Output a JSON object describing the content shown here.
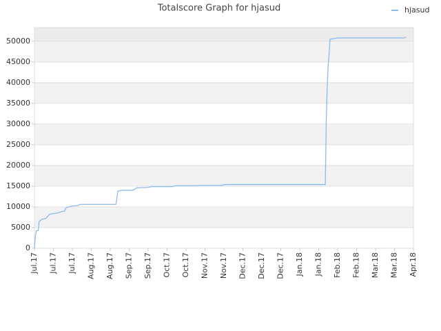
{
  "chart_data": {
    "type": "line",
    "title": "Totalscore Graph for hjasud",
    "x": [
      0,
      0.05,
      0.1,
      0.2,
      0.25,
      0.4,
      0.6,
      0.8,
      1.0,
      1.2,
      1.4,
      1.6,
      1.65,
      1.8,
      2.0,
      2.3,
      2.4,
      3.0,
      4.3,
      4.35,
      4.4,
      4.6,
      5.2,
      5.4,
      6.0,
      6.2,
      7.3,
      7.4,
      8.6,
      8.7,
      9.9,
      10.0,
      15.35,
      15.4,
      15.45,
      15.5,
      15.55,
      15.6,
      16.0,
      19.5,
      19.6
    ],
    "series": [
      {
        "name": "hjasud",
        "color": "#88bbee",
        "values": [
          0,
          3000,
          4200,
          4300,
          6500,
          7000,
          7200,
          8200,
          8400,
          8500,
          8800,
          9000,
          9700,
          10000,
          10200,
          10300,
          10600,
          10600,
          10600,
          12000,
          13800,
          14000,
          14000,
          14600,
          14700,
          14900,
          14900,
          15100,
          15100,
          15200,
          15200,
          15400,
          15400,
          31000,
          39000,
          44000,
          47000,
          50500,
          50800,
          50800,
          51000
        ]
      }
    ],
    "xlim": [
      0,
      20
    ],
    "xticks": [
      {
        "value": 0,
        "label": "Jul.17"
      },
      {
        "value": 1,
        "label": "Jul.17"
      },
      {
        "value": 2,
        "label": "Jul.17"
      },
      {
        "value": 3,
        "label": "Aug.17"
      },
      {
        "value": 4,
        "label": "Aug.17"
      },
      {
        "value": 5,
        "label": "Sep.17"
      },
      {
        "value": 6,
        "label": "Sep.17"
      },
      {
        "value": 7,
        "label": "Oct.17"
      },
      {
        "value": 8,
        "label": "Oct.17"
      },
      {
        "value": 9,
        "label": "Nov.17"
      },
      {
        "value": 10,
        "label": "Nov.17"
      },
      {
        "value": 11,
        "label": "Dec.17"
      },
      {
        "value": 12,
        "label": "Dec.17"
      },
      {
        "value": 13,
        "label": "Dec.17"
      },
      {
        "value": 14,
        "label": "Jan.18"
      },
      {
        "value": 15,
        "label": "Jan.18"
      },
      {
        "value": 16,
        "label": "Feb.18"
      },
      {
        "value": 17,
        "label": "Feb.18"
      },
      {
        "value": 18,
        "label": "Mar.18"
      },
      {
        "value": 19,
        "label": "Mar.18"
      },
      {
        "value": 20,
        "label": "Apr.18"
      }
    ],
    "ylim": [
      0,
      53300
    ],
    "yticks": [
      0,
      5000,
      10000,
      15000,
      20000,
      25000,
      30000,
      35000,
      40000,
      45000,
      50000
    ],
    "grid": true,
    "legend": "top-right"
  }
}
